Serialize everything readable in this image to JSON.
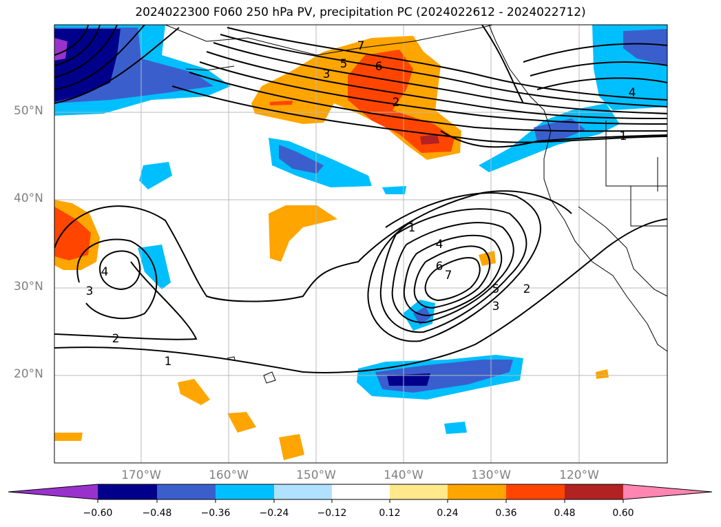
{
  "title": "2024022300 F060 250 hPa PV, precipitation PC (2024022612 - 2024022712)",
  "axes": {
    "lat_labels": [
      "50°N",
      "40°N",
      "30°N",
      "20°N"
    ],
    "lon_labels": [
      "170°W",
      "160°W",
      "150°W",
      "140°W",
      "130°W",
      "120°W"
    ]
  },
  "contour_labels": [
    "7",
    "6",
    "5",
    "4",
    "3",
    "2",
    "1",
    "1",
    "4",
    "6",
    "7",
    "5",
    "3",
    "2",
    "3",
    "4",
    "2",
    "1"
  ],
  "colorbar": {
    "ticks": [
      "−0.60",
      "−0.48",
      "−0.36",
      "−0.24",
      "−0.12",
      "0.12",
      "0.24",
      "0.36",
      "0.48",
      "0.60"
    ],
    "colors": [
      "#9932cc",
      "#00008b",
      "#3a5fcd",
      "#00bfff",
      "#b0e2ff",
      "#ffffff",
      "#ffe98a",
      "#ffa500",
      "#ff4500",
      "#b22222",
      "#ff86b0"
    ]
  }
}
